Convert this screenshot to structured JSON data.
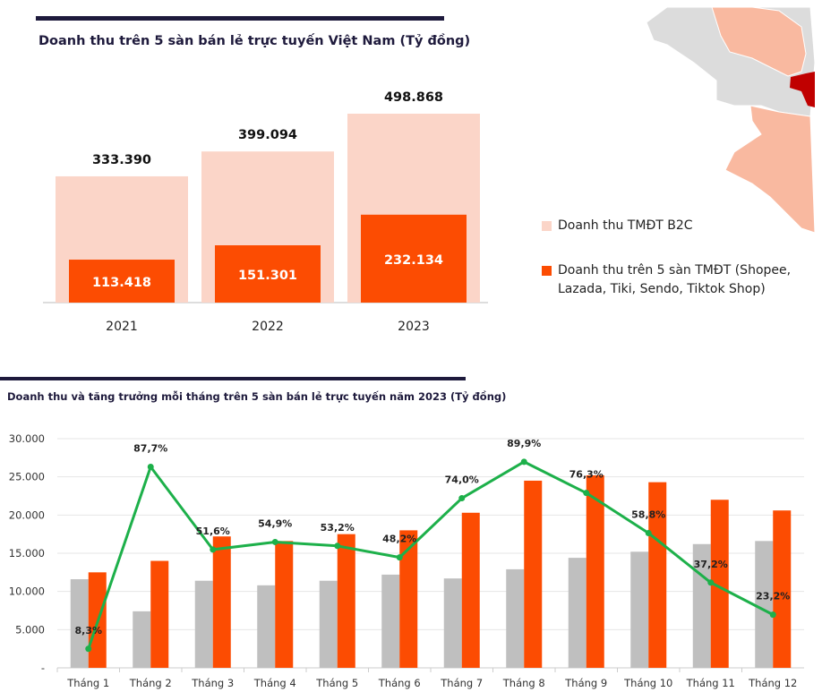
{
  "colors": {
    "navy": "#1e1a3c",
    "b2c": "#fbd5c8",
    "platform": "#fc4c02",
    "grey": "#bfbfbf",
    "line": "#1db04a",
    "map_grey": "#dcdcdc",
    "map_salmon": "#f9b9a0",
    "map_dark": "#c00000"
  },
  "chart_data": [
    {
      "type": "bar",
      "title": "Doanh thu trên 5 sàn bán lẻ trực tuyến Việt Nam (Tỷ đồng)",
      "categories": [
        "2021",
        "2022",
        "2023"
      ],
      "series": [
        {
          "name": "Doanh thu TMĐT B2C",
          "values": [
            333390,
            399094,
            498868
          ],
          "labels": [
            "333.390",
            "399.094",
            "498.868"
          ]
        },
        {
          "name": "Doanh thu trên 5 sàn TMĐT (Shopee, Lazada, Tiki, Sendo, Tiktok Shop)",
          "name_lines": [
            "Doanh thu trên 5 sàn TMĐT (Shopee,",
            "Lazada, Tiki, Sendo, Tiktok Shop)"
          ],
          "values": [
            113418,
            151301,
            232134
          ],
          "labels": [
            "113.418",
            "151.301",
            "232.134"
          ]
        }
      ],
      "overlapped": true,
      "legend": "right"
    },
    {
      "type": "bar",
      "title": "Doanh thu và tăng trưởng mỗi tháng trên 5 sàn bán lẻ trực tuyến năm 2023 (Tỷ đồng)",
      "categories": [
        "Tháng 1",
        "Tháng 2",
        "Tháng 3",
        "Tháng 4",
        "Tháng 5",
        "Tháng 6",
        "Tháng 7",
        "Tháng 8",
        "Tháng 9",
        "Tháng 10",
        "Tháng 11",
        "Tháng 12"
      ],
      "ylim": [
        0,
        30000
      ],
      "yticks": [
        "-",
        "5.000",
        "10.000",
        "15.000",
        "20.000",
        "25.000",
        "30.000"
      ],
      "grid": true,
      "series": [
        {
          "type": "bar",
          "color": "grey",
          "values": [
            11600,
            7400,
            11400,
            10800,
            11400,
            12200,
            11700,
            12900,
            14400,
            15200,
            16200,
            16600
          ]
        },
        {
          "type": "bar",
          "color": "orange",
          "values": [
            12500,
            14000,
            17200,
            16600,
            17500,
            18000,
            20300,
            24500,
            25200,
            24300,
            22000,
            20600
          ]
        },
        {
          "type": "line",
          "color": "green",
          "secondary_axis_percent": [
            0,
            100
          ],
          "values": [
            8.3,
            87.7,
            51.6,
            54.9,
            53.2,
            48.2,
            74.0,
            89.9,
            76.3,
            58.8,
            37.2,
            23.2
          ],
          "labels": [
            "8,3%",
            "87,7%",
            "51,6%",
            "54,9%",
            "53,2%",
            "48,2%",
            "74,0%",
            "89,9%",
            "76,3%",
            "58,8%",
            "37,2%",
            "23,2%"
          ]
        }
      ]
    }
  ]
}
